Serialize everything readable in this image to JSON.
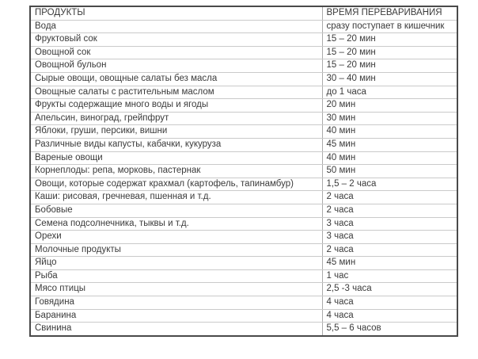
{
  "colors": {
    "background": "#ffffff",
    "text": "#3b3b3b",
    "outer_border": "#4a4a4a",
    "grid_line": "#cacaca",
    "column_divider": "#ababab"
  },
  "chart_data": {
    "type": "table",
    "title": "",
    "columns": [
      "ПРОДУКТЫ",
      "ВРЕМЯ ПЕРЕВАРИВАНИЯ"
    ],
    "rows": [
      [
        "Вода",
        "сразу поступает в кишечник"
      ],
      [
        "Фруктовый сок",
        "15 – 20 мин"
      ],
      [
        "Овощной сок",
        "15 – 20 мин"
      ],
      [
        "Овощной бульон",
        "15 – 20 мин"
      ],
      [
        "Сырые овощи, овощные салаты без масла",
        "30 – 40 мин"
      ],
      [
        "Овощные салаты с растительным маслом",
        "до 1 часа"
      ],
      [
        "Фрукты содержащие много воды и ягоды",
        "20 мин"
      ],
      [
        "Апельсин, виноград, грейпфрут",
        "30 мин"
      ],
      [
        "Яблоки, груши, персики, вишни",
        "40 мин"
      ],
      [
        "Различные виды капусты, кабачки, кукуруза",
        "45 мин"
      ],
      [
        "Вареные овощи",
        "40 мин"
      ],
      [
        "Корнеплоды: репа, морковь, пастернак",
        "50 мин"
      ],
      [
        "Овощи, которые содержат крахмал (картофель, тапинамбур)",
        "1,5 – 2 часа"
      ],
      [
        "Каши: рисовая, гречневая, пшенная и т.д.",
        "2 часа"
      ],
      [
        "Бобовые",
        "2 часа"
      ],
      [
        "Семена подсолнечника, тыквы и т.д.",
        "3 часа"
      ],
      [
        "Орехи",
        "3 часа"
      ],
      [
        "Молочные продукты",
        "2 часа"
      ],
      [
        "Яйцо",
        "45 мин"
      ],
      [
        "Рыба",
        "1 час"
      ],
      [
        "Мясо птицы",
        "2,5 -3 часа"
      ],
      [
        "Говядина",
        "4 часа"
      ],
      [
        "Баранина",
        "4 часа"
      ],
      [
        "Свинина",
        "5,5 – 6 часов"
      ]
    ]
  }
}
